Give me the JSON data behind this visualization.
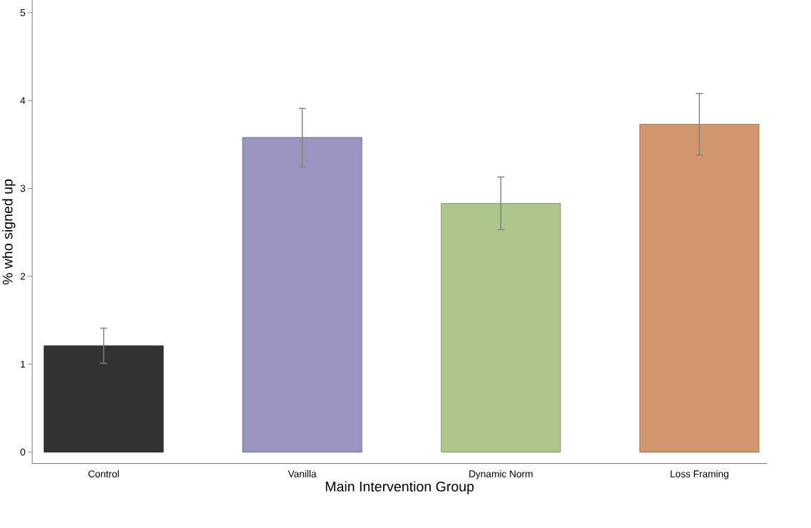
{
  "chart_data": {
    "type": "bar",
    "xlabel": "Main Intervention Group",
    "ylabel": "% who signed up",
    "categories": [
      "Control",
      "Vanilla",
      "Dynamic Norm",
      "Loss Framing"
    ],
    "values": [
      1.21,
      3.58,
      2.83,
      3.73
    ],
    "errors": [
      0.2,
      0.33,
      0.3,
      0.35
    ],
    "colors": [
      "#333333",
      "#9896c0",
      "#aec58c",
      "#d1966d"
    ],
    "ylim": [
      -0.13,
      5.14
    ],
    "yticks": [
      0,
      1,
      2,
      3,
      4,
      5
    ],
    "grid": false
  }
}
